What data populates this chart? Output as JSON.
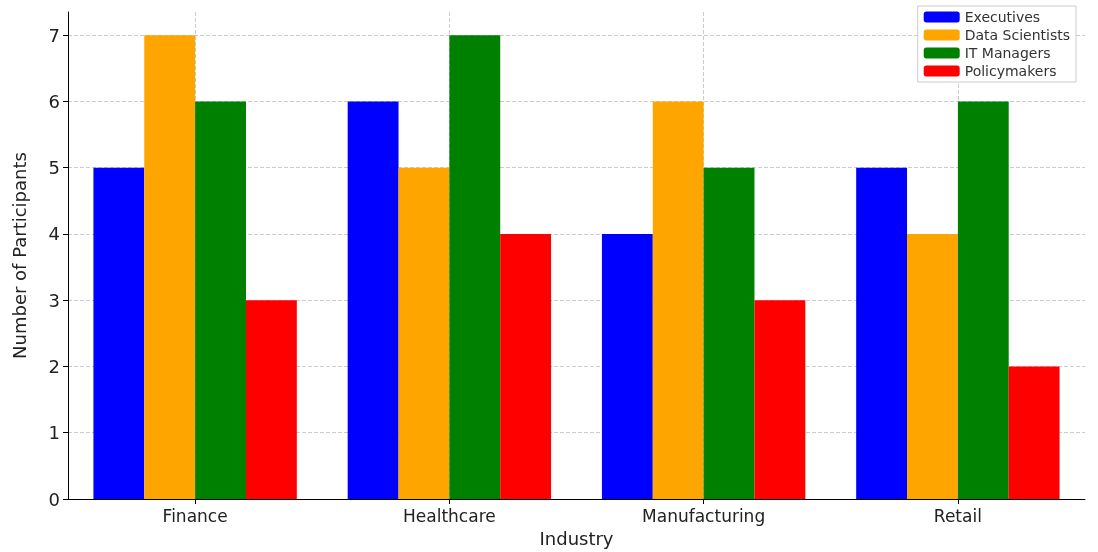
{
  "chart_data": {
    "type": "bar",
    "xlabel": "Industry",
    "ylabel": "Number of Participants",
    "categories": [
      "Finance",
      "Healthcare",
      "Manufacturing",
      "Retail"
    ],
    "series": [
      {
        "name": "Executives",
        "color": "#0000ff",
        "values": [
          5,
          6,
          4,
          5
        ]
      },
      {
        "name": "Data Scientists",
        "color": "#ffa500",
        "values": [
          7,
          5,
          6,
          4
        ]
      },
      {
        "name": "IT Managers",
        "color": "#008000",
        "values": [
          6,
          7,
          5,
          6
        ]
      },
      {
        "name": "Policymakers",
        "color": "#ff0000",
        "values": [
          3,
          4,
          3,
          2
        ]
      }
    ],
    "ylim": [
      0,
      7.35
    ],
    "yticks": [
      0,
      1,
      2,
      3,
      4,
      5,
      6,
      7
    ],
    "grid": true,
    "legend": "top right"
  }
}
